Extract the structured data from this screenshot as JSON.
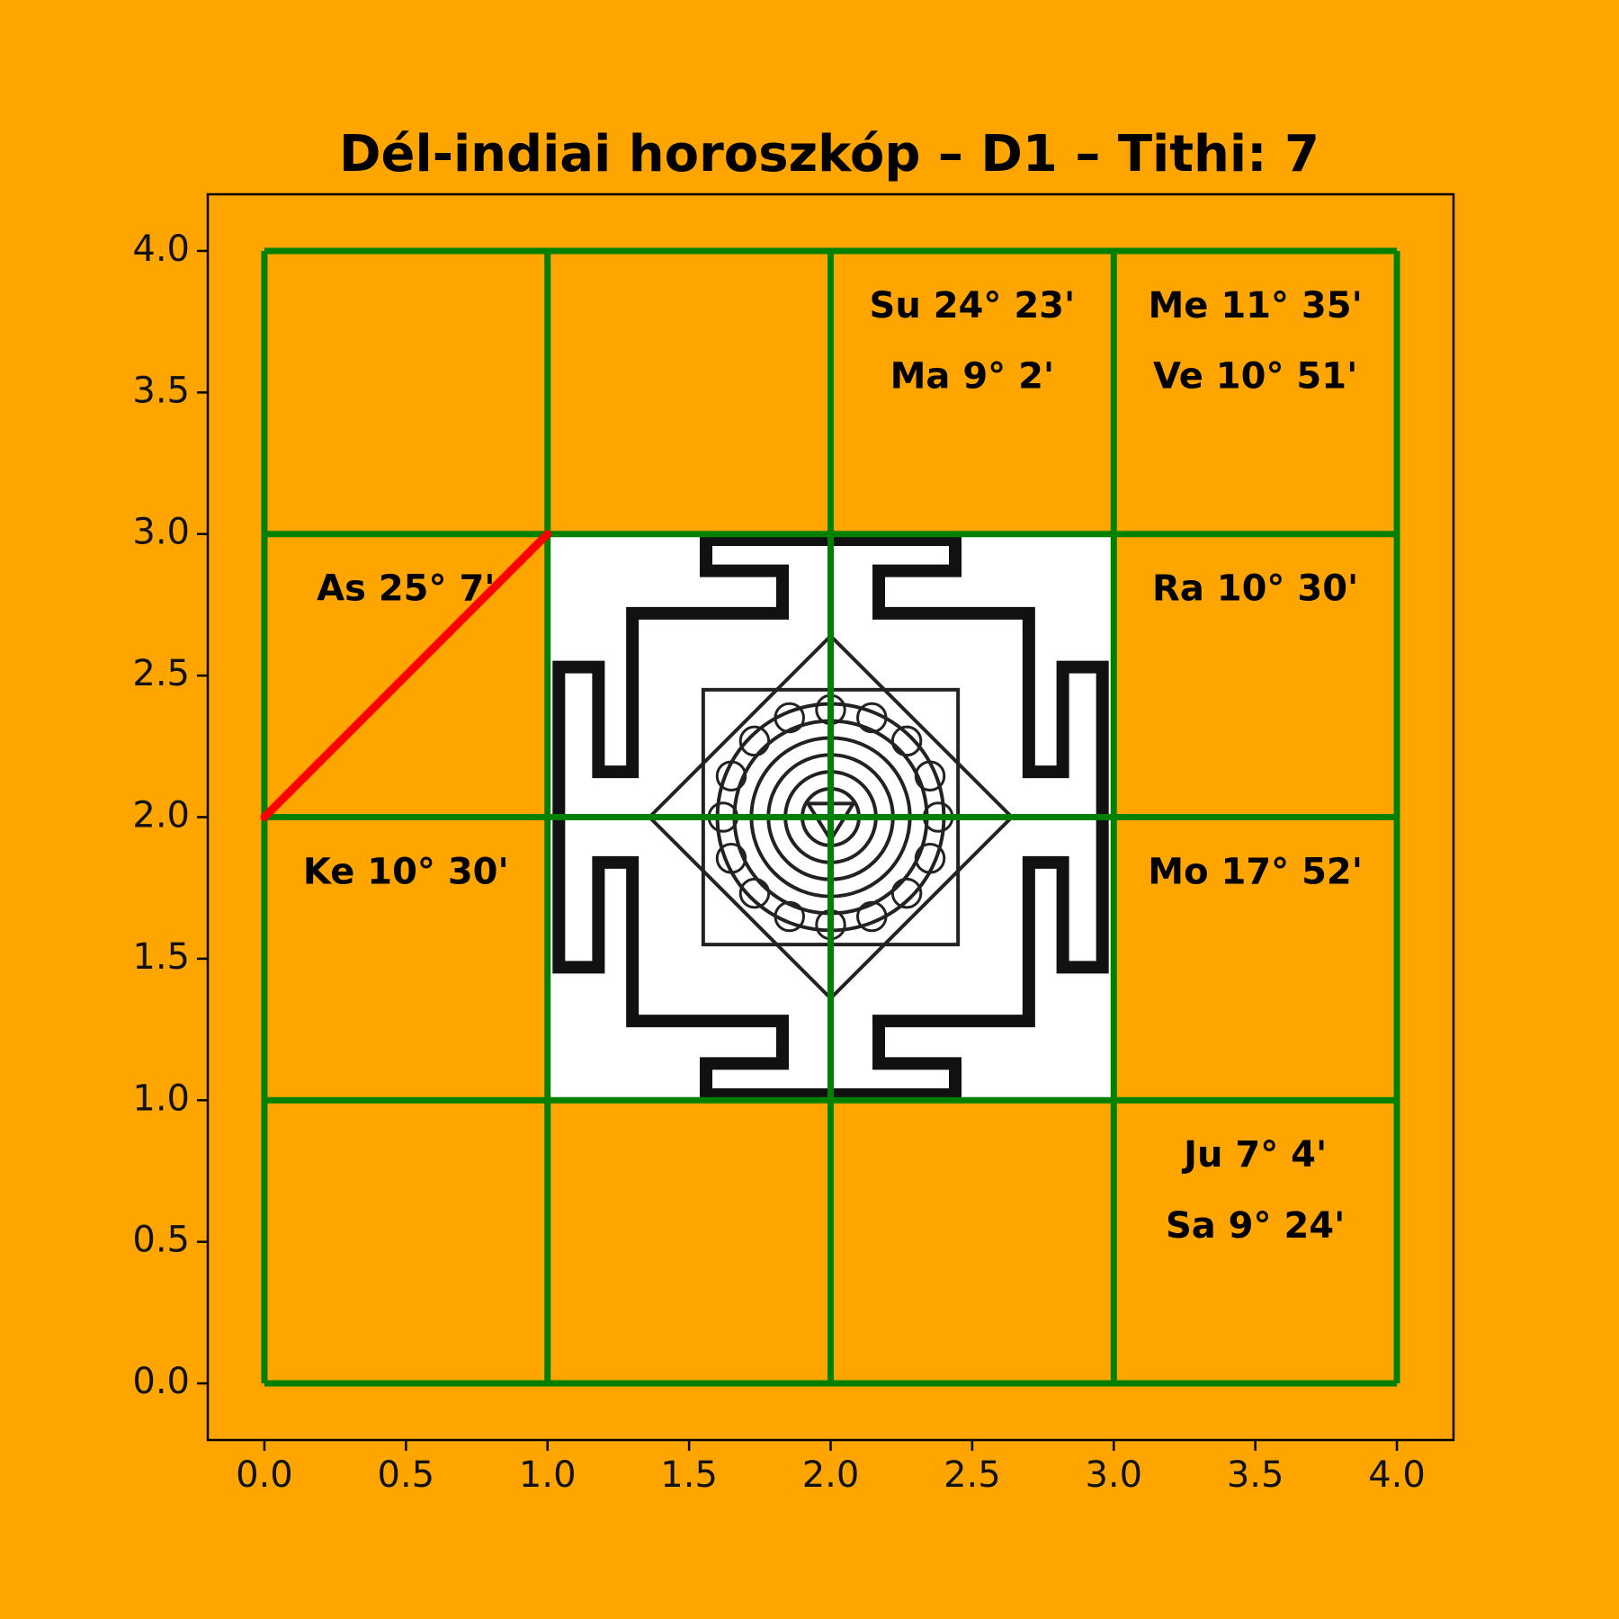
{
  "chart_data": {
    "type": "table",
    "title": "Dél-indiai horoszkóp – D1 – Tithi: 7",
    "xlabel": "",
    "ylabel": "",
    "xlim": [
      -0.2,
      4.2
    ],
    "ylim": [
      -0.2,
      4.2
    ],
    "x_ticks": [
      "0.0",
      "0.5",
      "1.0",
      "1.5",
      "2.0",
      "2.5",
      "3.0",
      "3.5",
      "4.0"
    ],
    "y_ticks": [
      "0.0",
      "0.5",
      "1.0",
      "1.5",
      "2.0",
      "2.5",
      "3.0",
      "3.5",
      "4.0"
    ],
    "grid": false,
    "background_color": "#FFA500",
    "cell_line_color": "#008000",
    "ascendant_marker_color": "#FF0000",
    "center_image": "sri-yantra",
    "cells": [
      {
        "row": 3,
        "col": 2,
        "planets": [
          "Su 24° 23'",
          "Ma 9° 2'"
        ]
      },
      {
        "row": 3,
        "col": 3,
        "planets": [
          "Me 11° 35'",
          "Ve 10° 51'"
        ]
      },
      {
        "row": 2,
        "col": 0,
        "planets": [
          "As 25° 7'"
        ]
      },
      {
        "row": 2,
        "col": 3,
        "planets": [
          "Ra 10° 30'"
        ]
      },
      {
        "row": 1,
        "col": 0,
        "planets": [
          "Ke 10° 30'"
        ]
      },
      {
        "row": 1,
        "col": 3,
        "planets": [
          "Mo 17° 52'"
        ]
      },
      {
        "row": 0,
        "col": 3,
        "planets": [
          "Ju 7° 4'",
          "Sa 9° 24'"
        ]
      }
    ],
    "ascendant_line": {
      "x": [
        0,
        1
      ],
      "y": [
        2,
        3
      ]
    }
  }
}
